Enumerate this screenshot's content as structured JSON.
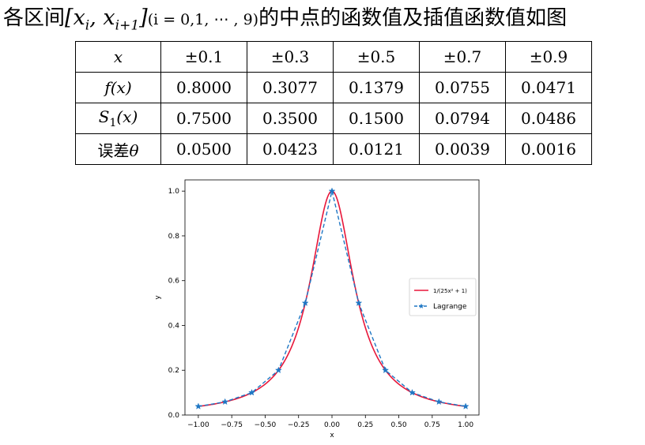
{
  "heading": {
    "prefix": "各区间",
    "interval_math": "[x_i, x_{i+1}]",
    "index_note": "(i = 0,1, ⋯ , 9)",
    "suffix": "的中点的函数值及插值函数值如图"
  },
  "table": {
    "header": [
      "x",
      "±0.1",
      "±0.3",
      "±0.5",
      "±0.7",
      "±0.9"
    ],
    "rows": [
      {
        "label": "f(x)",
        "values": [
          "0.8000",
          "0.3077",
          "0.1379",
          "0.0755",
          "0.0471"
        ]
      },
      {
        "label": "S1(x)",
        "values": [
          "0.7500",
          "0.3500",
          "0.1500",
          "0.0794",
          "0.0486"
        ]
      },
      {
        "label": "误差θ",
        "values": [
          "0.0500",
          "0.0423",
          "0.0121",
          "0.0039",
          "0.0016"
        ]
      }
    ]
  },
  "chart_data": {
    "type": "line",
    "title": "",
    "xlabel": "x",
    "ylabel": "y",
    "xlim": [
      -1.1,
      1.1
    ],
    "ylim": [
      0.0,
      1.05
    ],
    "xticks": [
      "−1.00",
      "−0.75",
      "−0.50",
      "−0.25",
      "0.00",
      "0.25",
      "0.50",
      "0.75",
      "1.00"
    ],
    "yticks": [
      "0.0",
      "0.2",
      "0.4",
      "0.6",
      "0.8",
      "1.0"
    ],
    "grid": false,
    "legend_position": "right",
    "series": [
      {
        "name": "1/(25x²+1)",
        "legend_label": "1/(25x² + 1)",
        "color": "#e8173a",
        "style": "solid",
        "x": [
          -1.0,
          -0.9,
          -0.8,
          -0.7,
          -0.6,
          -0.5,
          -0.4,
          -0.35,
          -0.3,
          -0.25,
          -0.2,
          -0.15,
          -0.1,
          -0.05,
          0.0,
          0.05,
          0.1,
          0.15,
          0.2,
          0.25,
          0.3,
          0.35,
          0.4,
          0.5,
          0.6,
          0.7,
          0.8,
          0.9,
          1.0
        ],
        "y": [
          0.0385,
          0.0471,
          0.0588,
          0.0755,
          0.1,
          0.1379,
          0.2,
          0.2462,
          0.3077,
          0.3902,
          0.5,
          0.64,
          0.8,
          0.9412,
          1.0,
          0.9412,
          0.8,
          0.64,
          0.5,
          0.3902,
          0.3077,
          0.2462,
          0.2,
          0.1379,
          0.1,
          0.0755,
          0.0588,
          0.0471,
          0.0385
        ]
      },
      {
        "name": "Lagrange",
        "legend_label": "Lagrange",
        "color": "#1f77c4",
        "style": "dashed",
        "marker": "star",
        "x": [
          -1.0,
          -0.8,
          -0.6,
          -0.4,
          -0.2,
          0.0,
          0.2,
          0.4,
          0.6,
          0.8,
          1.0
        ],
        "y": [
          0.0385,
          0.0588,
          0.1,
          0.2,
          0.5,
          1.0,
          0.5,
          0.2,
          0.1,
          0.0588,
          0.0385
        ]
      }
    ]
  }
}
